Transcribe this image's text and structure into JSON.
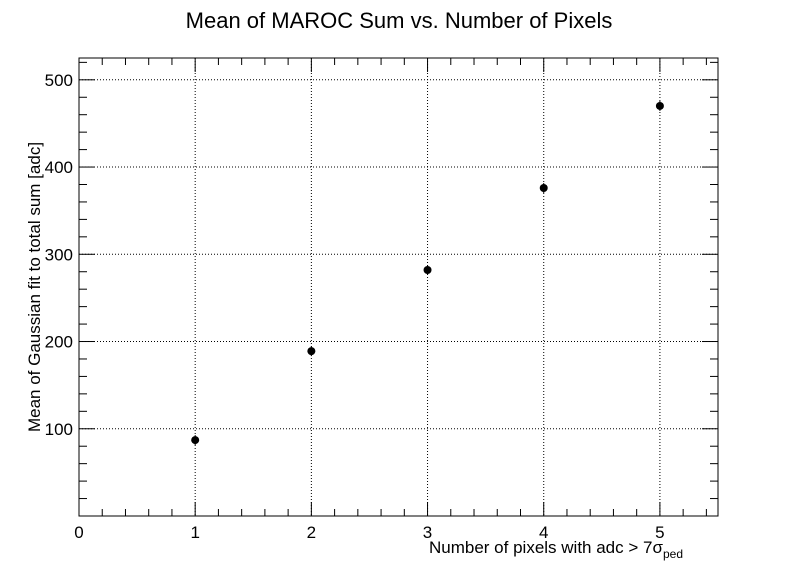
{
  "chart_data": {
    "type": "scatter",
    "title": "Mean of MAROC Sum vs. Number of Pixels",
    "xlabel": "Number of pixels with adc > 7σ",
    "xlabel_subscript": "ped",
    "ylabel": "Mean of Gaussian fit to total sum [adc]",
    "xlim": [
      0,
      5.5
    ],
    "ylim": [
      0,
      525
    ],
    "xticks": [
      0,
      1,
      2,
      3,
      4,
      5
    ],
    "yticks": [
      100,
      200,
      300,
      400,
      500
    ],
    "grid": true,
    "marker_color": "#000000",
    "series": [
      {
        "x": [
          1,
          2,
          3,
          4,
          5
        ],
        "y": [
          87,
          189,
          282,
          376,
          470
        ]
      }
    ]
  }
}
